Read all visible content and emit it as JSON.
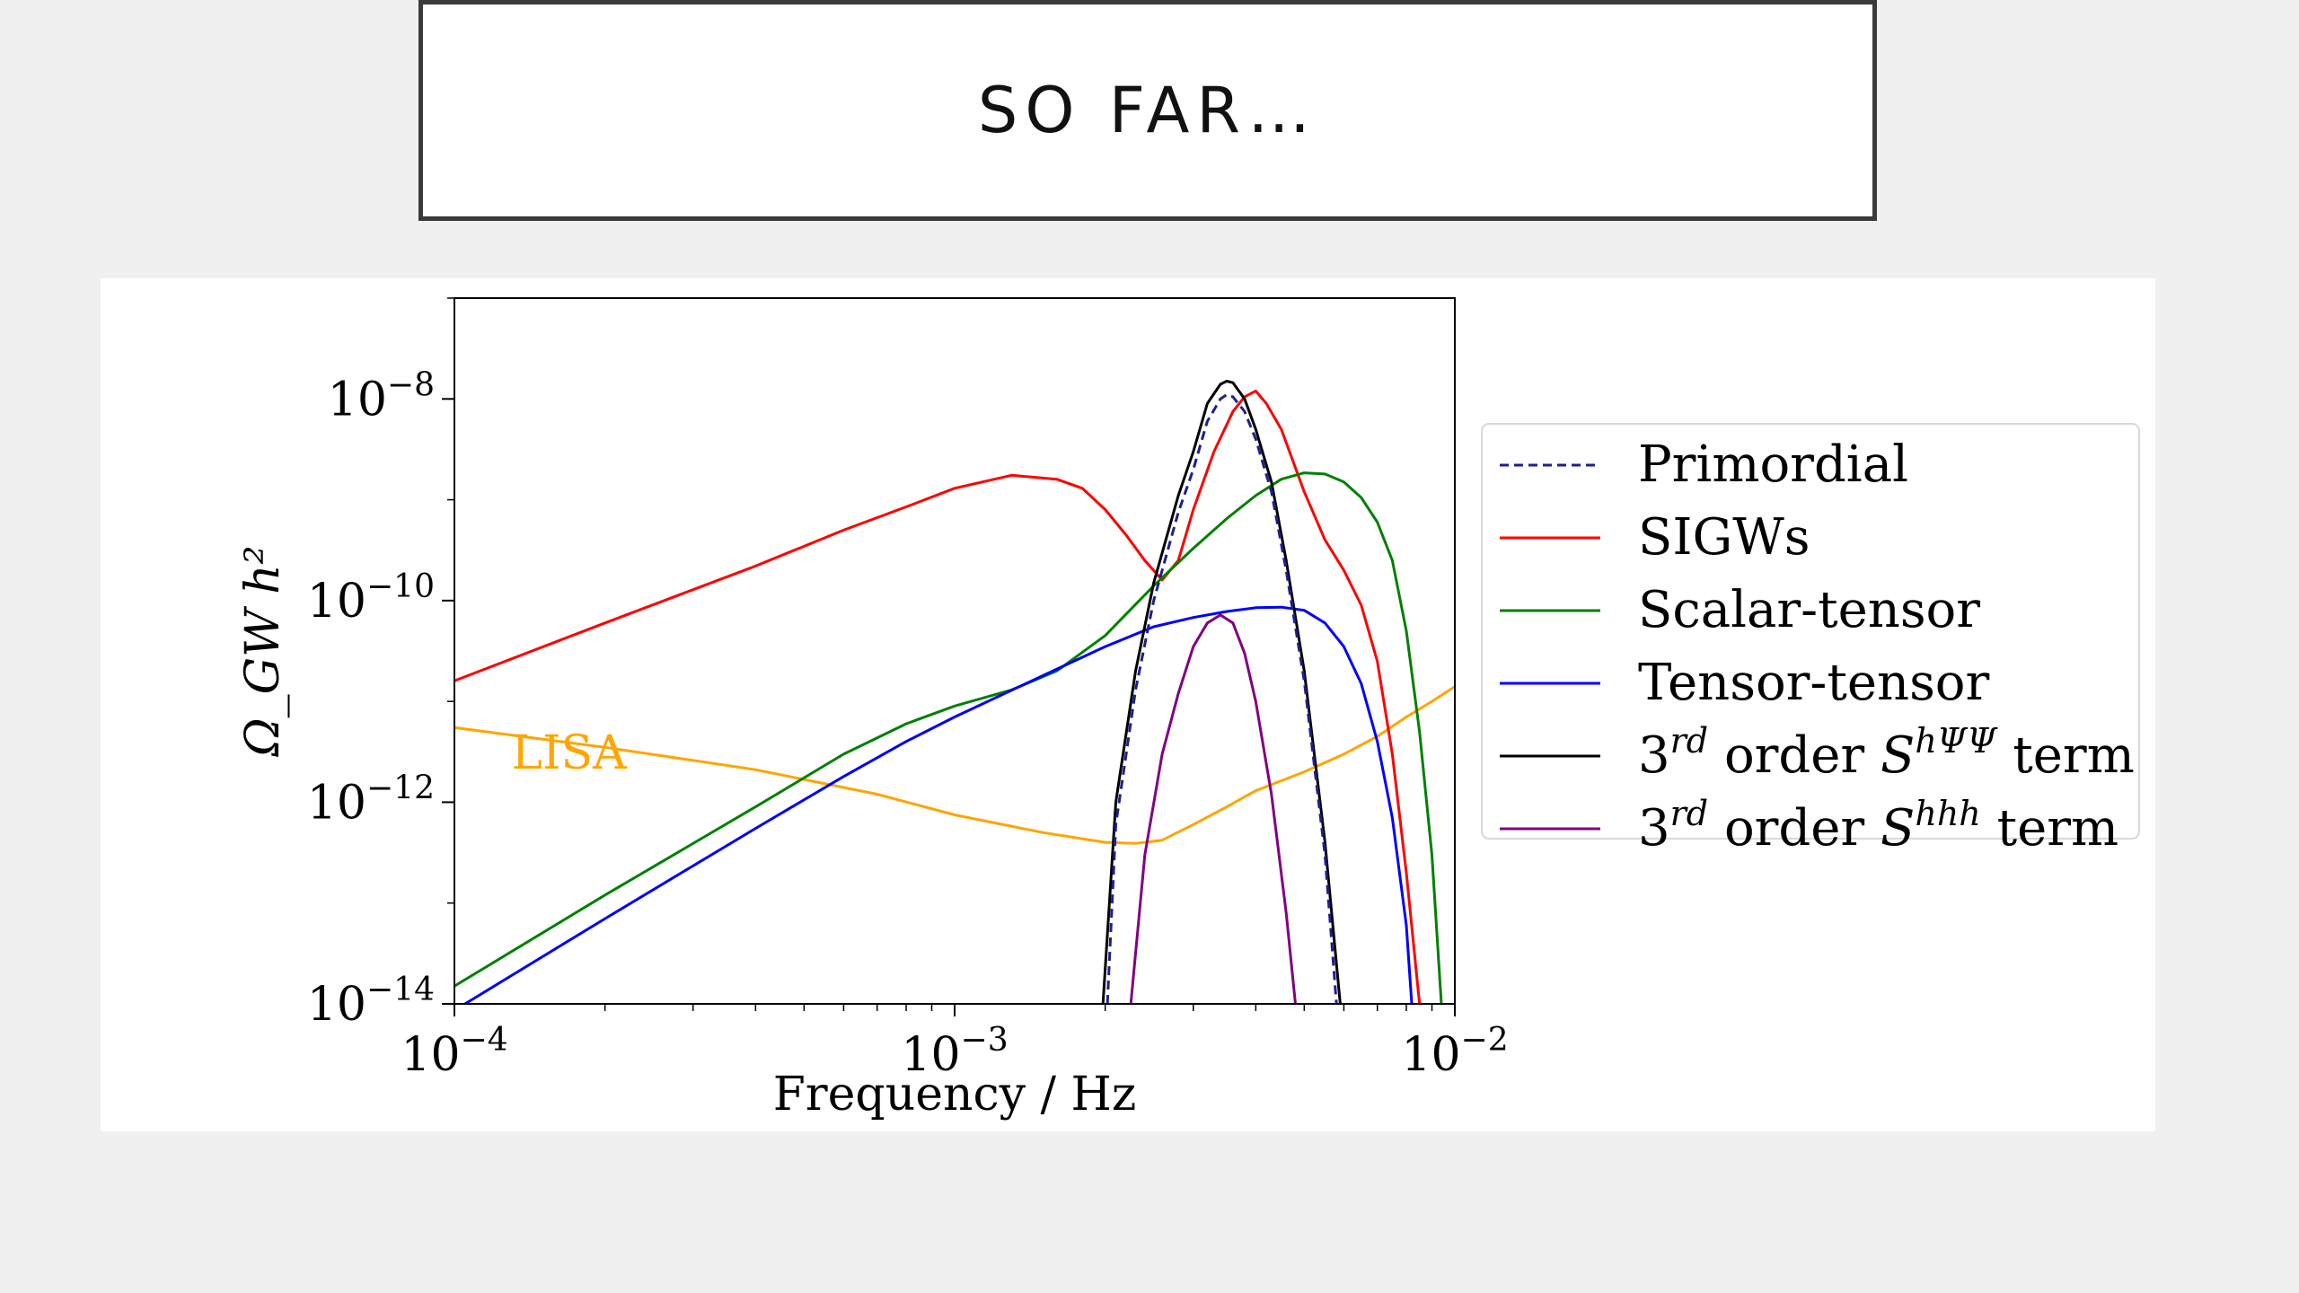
{
  "slide": {
    "title": "SO FAR…"
  },
  "chart_data": {
    "type": "line",
    "x_scale": "log",
    "y_scale": "log",
    "xlabel": "Frequency / Hz",
    "ylabel": "Ω_GW h²",
    "xlim": [
      0.0001,
      0.01
    ],
    "ylim": [
      1e-14,
      1e-07
    ],
    "x_ticks": [
      {
        "value": 0.0001,
        "base": "10",
        "exp": "−4"
      },
      {
        "value": 0.001,
        "base": "10",
        "exp": "−3"
      },
      {
        "value": 0.01,
        "base": "10",
        "exp": "−2"
      }
    ],
    "y_ticks": [
      {
        "value": 1e-08,
        "base": "10",
        "exp": "−8"
      },
      {
        "value": 1e-10,
        "base": "10",
        "exp": "−10"
      },
      {
        "value": 1e-12,
        "base": "10",
        "exp": "−12"
      },
      {
        "value": 1e-14,
        "base": "10",
        "exp": "−14"
      }
    ],
    "annotation": {
      "text": "LISA",
      "x": 0.00013,
      "y": 3e-12,
      "color": "#ffa500"
    },
    "legend_position": "right outside",
    "legend": [
      {
        "label": "Primordial",
        "color": "#1f1f8f",
        "dash": true
      },
      {
        "label": "SIGWs",
        "color": "#ff0000",
        "dash": false
      },
      {
        "label": "Scalar-tensor",
        "color": "#008000",
        "dash": false
      },
      {
        "label": "Tensor-tensor",
        "color": "#0000ff",
        "dash": false
      },
      {
        "label": "3rd order ShΨΨ term",
        "pre": "3",
        "sup1": "rd",
        "mid": " order ",
        "sym": "S",
        "sup2": "hΨΨ",
        "post": " term",
        "color": "#000000",
        "dash": false
      },
      {
        "label": "3rd order Shhh term",
        "pre": "3",
        "sup1": "rd",
        "mid": " order ",
        "sym": "S",
        "sup2": "hhh",
        "post": " term",
        "color": "#800080",
        "dash": false
      }
    ],
    "series": [
      {
        "name": "LISA",
        "color": "#ffa500",
        "dash": false,
        "points": [
          [
            0.0001,
            5.5e-12
          ],
          [
            0.0002,
            3.5e-12
          ],
          [
            0.0004,
            2.1e-12
          ],
          [
            0.0007,
            1.2e-12
          ],
          [
            0.001,
            7.5e-13
          ],
          [
            0.0015,
            5e-13
          ],
          [
            0.002,
            4e-13
          ],
          [
            0.0023,
            3.9e-13
          ],
          [
            0.0026,
            4.2e-13
          ],
          [
            0.003,
            6e-13
          ],
          [
            0.0035,
            9e-13
          ],
          [
            0.004,
            1.3e-12
          ],
          [
            0.005,
            2e-12
          ],
          [
            0.006,
            3e-12
          ],
          [
            0.007,
            4.5e-12
          ],
          [
            0.008,
            7e-12
          ],
          [
            0.009,
            1e-11
          ],
          [
            0.01,
            1.4e-11
          ]
        ]
      },
      {
        "name": "SIGWs",
        "color": "#ff0000",
        "dash": false,
        "points": [
          [
            0.0001,
            1.6e-11
          ],
          [
            0.0002,
            6e-11
          ],
          [
            0.0004,
            2.2e-10
          ],
          [
            0.0006,
            5e-10
          ],
          [
            0.0008,
            8.5e-10
          ],
          [
            0.001,
            1.3e-09
          ],
          [
            0.0013,
            1.75e-09
          ],
          [
            0.0016,
            1.6e-09
          ],
          [
            0.0018,
            1.3e-09
          ],
          [
            0.002,
            8e-10
          ],
          [
            0.0022,
            4.5e-10
          ],
          [
            0.0024,
            2.5e-10
          ],
          [
            0.0026,
            1.6e-10
          ],
          [
            0.0028,
            2.5e-10
          ],
          [
            0.003,
            8e-10
          ],
          [
            0.0033,
            3e-09
          ],
          [
            0.0036,
            7.5e-09
          ],
          [
            0.0038,
            1.05e-08
          ],
          [
            0.004,
            1.2e-08
          ],
          [
            0.0042,
            9e-09
          ],
          [
            0.0045,
            5e-09
          ],
          [
            0.005,
            1.2e-09
          ],
          [
            0.0055,
            4e-10
          ],
          [
            0.006,
            2e-10
          ],
          [
            0.0065,
            9e-11
          ],
          [
            0.007,
            2.5e-11
          ],
          [
            0.0075,
            3e-12
          ],
          [
            0.008,
            2e-13
          ],
          [
            0.0085,
            1e-14
          ]
        ]
      },
      {
        "name": "Scalar-tensor",
        "color": "#008000",
        "dash": false,
        "points": [
          [
            0.0001,
            1.5e-14
          ],
          [
            0.0002,
            1.2e-13
          ],
          [
            0.0004,
            9e-13
          ],
          [
            0.0006,
            3e-12
          ],
          [
            0.0008,
            6e-12
          ],
          [
            0.001,
            9e-12
          ],
          [
            0.0013,
            1.3e-11
          ],
          [
            0.0016,
            2e-11
          ],
          [
            0.002,
            4.5e-11
          ],
          [
            0.0025,
            1.4e-10
          ],
          [
            0.003,
            3.3e-10
          ],
          [
            0.0035,
            6.5e-10
          ],
          [
            0.004,
            1.1e-09
          ],
          [
            0.0045,
            1.6e-09
          ],
          [
            0.005,
            1.85e-09
          ],
          [
            0.0055,
            1.8e-09
          ],
          [
            0.006,
            1.5e-09
          ],
          [
            0.0065,
            1.05e-09
          ],
          [
            0.007,
            6e-10
          ],
          [
            0.0075,
            2.5e-10
          ],
          [
            0.008,
            5e-11
          ],
          [
            0.0085,
            5e-12
          ],
          [
            0.009,
            3e-13
          ],
          [
            0.0094,
            1e-14
          ]
        ]
      },
      {
        "name": "Tensor-tensor",
        "color": "#0000ff",
        "dash": false,
        "points": [
          [
            0.000105,
            1e-14
          ],
          [
            0.0002,
            7e-14
          ],
          [
            0.0004,
            5.5e-13
          ],
          [
            0.0006,
            1.8e-12
          ],
          [
            0.0008,
            4e-12
          ],
          [
            0.001,
            7e-12
          ],
          [
            0.0015,
            1.8e-11
          ],
          [
            0.002,
            3.5e-11
          ],
          [
            0.0025,
            5.5e-11
          ],
          [
            0.003,
            6.8e-11
          ],
          [
            0.0035,
            7.8e-11
          ],
          [
            0.004,
            8.5e-11
          ],
          [
            0.0045,
            8.6e-11
          ],
          [
            0.005,
            8e-11
          ],
          [
            0.0055,
            6e-11
          ],
          [
            0.006,
            3.5e-11
          ],
          [
            0.0065,
            1.5e-11
          ],
          [
            0.007,
            4e-12
          ],
          [
            0.0075,
            7e-13
          ],
          [
            0.008,
            6e-14
          ],
          [
            0.0082,
            1e-14
          ]
        ]
      },
      {
        "name": "3rd order ShΨΨ term",
        "color": "#000000",
        "dash": false,
        "points": [
          [
            0.00198,
            1e-14
          ],
          [
            0.0021,
            1e-12
          ],
          [
            0.0023,
            2e-11
          ],
          [
            0.0025,
            1.5e-10
          ],
          [
            0.0028,
            1.1e-09
          ],
          [
            0.003,
            3e-09
          ],
          [
            0.0032,
            9e-09
          ],
          [
            0.0034,
            1.4e-08
          ],
          [
            0.0035,
            1.5e-08
          ],
          [
            0.0036,
            1.45e-08
          ],
          [
            0.0038,
            1e-08
          ],
          [
            0.004,
            5e-09
          ],
          [
            0.0043,
            1.5e-09
          ],
          [
            0.0046,
            2.5e-10
          ],
          [
            0.005,
            2e-11
          ],
          [
            0.0055,
            4e-13
          ],
          [
            0.0059,
            1e-14
          ]
        ]
      },
      {
        "name": "Primordial",
        "color": "#1f1f8f",
        "dash": true,
        "points": [
          [
            0.00202,
            1e-14
          ],
          [
            0.0021,
            6e-13
          ],
          [
            0.0023,
            1.3e-11
          ],
          [
            0.0025,
            1e-10
          ],
          [
            0.0028,
            7.5e-10
          ],
          [
            0.003,
            2e-09
          ],
          [
            0.0032,
            6e-09
          ],
          [
            0.0034,
            1e-08
          ],
          [
            0.0035,
            1.1e-08
          ],
          [
            0.0036,
            1.05e-08
          ],
          [
            0.0038,
            7.5e-09
          ],
          [
            0.004,
            4e-09
          ],
          [
            0.0043,
            1.2e-09
          ],
          [
            0.0046,
            2e-10
          ],
          [
            0.005,
            1.6e-11
          ],
          [
            0.0055,
            3e-13
          ],
          [
            0.0058,
            1e-14
          ]
        ]
      },
      {
        "name": "3rd order Shhh term",
        "color": "#800080",
        "dash": false,
        "points": [
          [
            0.00225,
            1e-14
          ],
          [
            0.0024,
            3e-13
          ],
          [
            0.0026,
            3e-12
          ],
          [
            0.0028,
            1.2e-11
          ],
          [
            0.003,
            3.5e-11
          ],
          [
            0.0032,
            6e-11
          ],
          [
            0.0034,
            7.2e-11
          ],
          [
            0.0036,
            6e-11
          ],
          [
            0.0038,
            3e-11
          ],
          [
            0.004,
            1e-11
          ],
          [
            0.0043,
            1.2e-12
          ],
          [
            0.0046,
            8e-14
          ],
          [
            0.0048,
            1e-14
          ]
        ]
      }
    ]
  }
}
